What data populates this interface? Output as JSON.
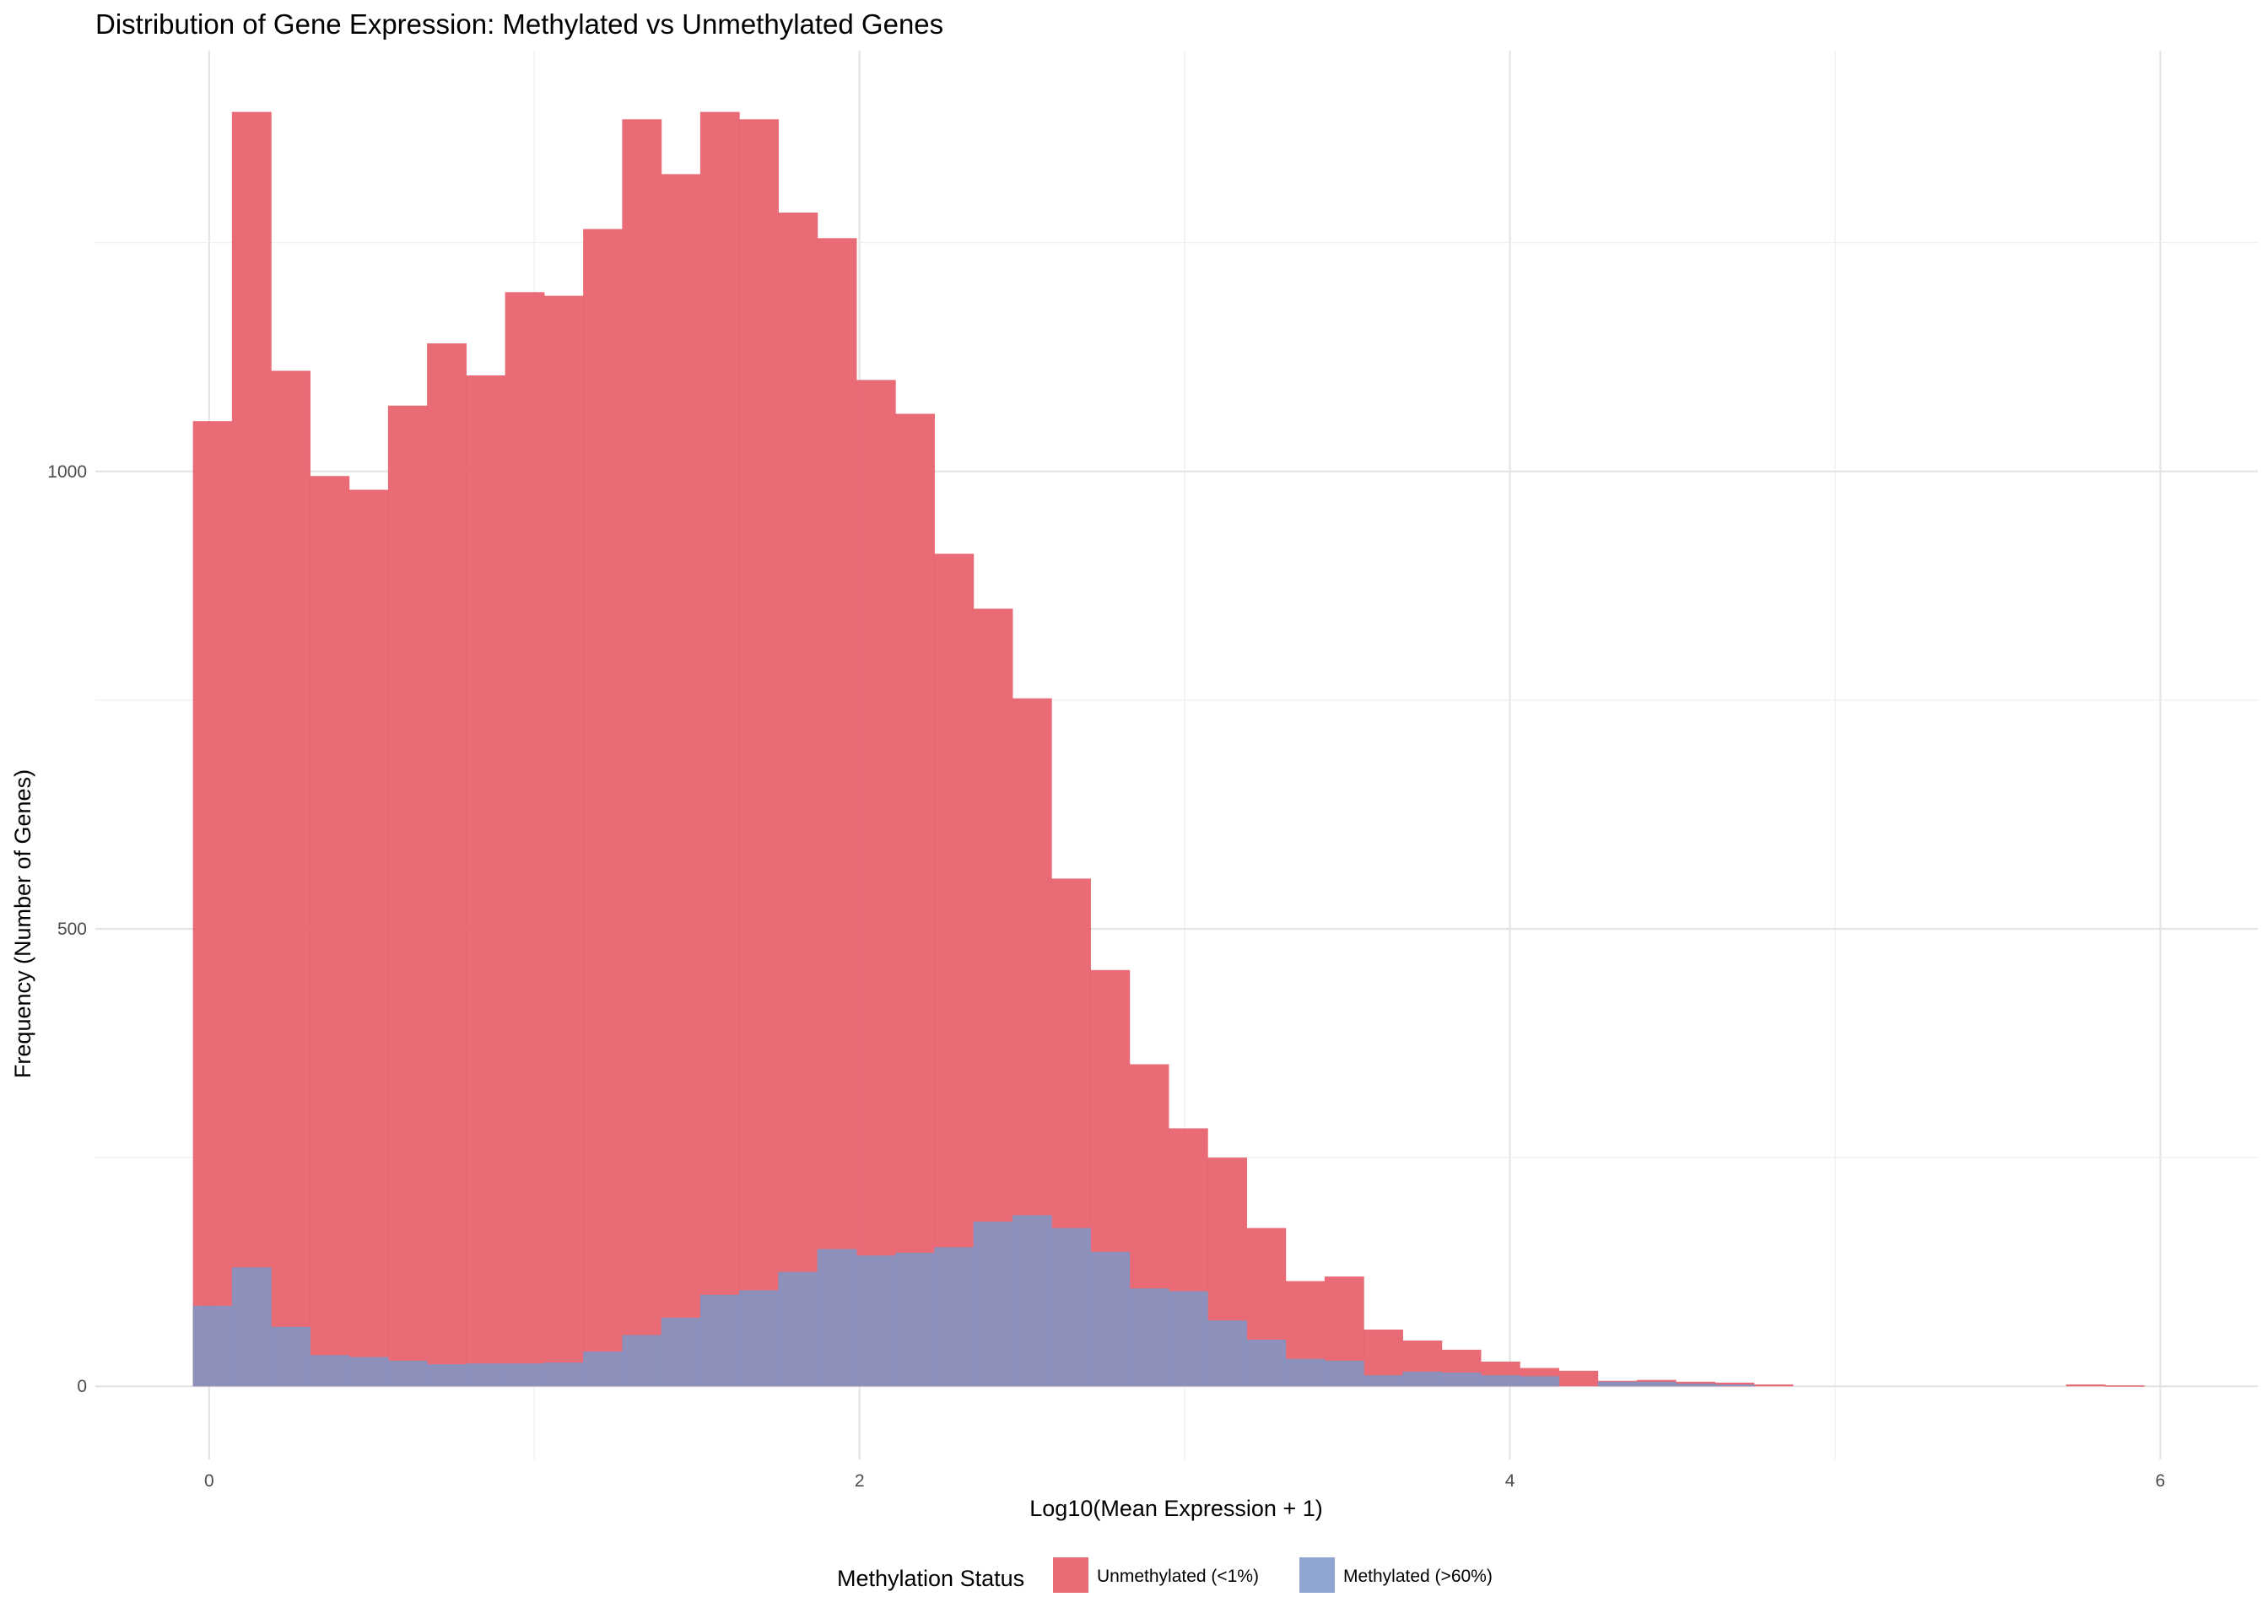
{
  "chart_data": {
    "type": "bar",
    "chart_subtype": "overlaid-histogram",
    "title": "Distribution of Gene Expression: Methylated vs Unmethylated Genes",
    "xlabel": "Log10(Mean Expression + 1)",
    "ylabel": "Frequency (Number of Genes)",
    "xlim": [
      -0.35,
      6.3
    ],
    "ylim": [
      -80,
      1460
    ],
    "x_ticks": [
      0,
      2,
      4,
      6
    ],
    "x_tick_labels": [
      "0",
      "2",
      "4",
      "6"
    ],
    "y_ticks": [
      0,
      500,
      1000
    ],
    "y_tick_labels": [
      "0",
      "500",
      "1000"
    ],
    "grid": true,
    "bin_width": 0.12,
    "bin_start": -0.05,
    "legend": {
      "title": "Methylation Status",
      "position": "bottom",
      "entries": [
        "Unmethylated (<1%)",
        "Methylated (>60%)"
      ]
    },
    "series": [
      {
        "name": "Unmethylated (<1%)",
        "color": "#E8636F",
        "values": [
          1055,
          1393,
          1110,
          995,
          980,
          1072,
          1140,
          1105,
          1196,
          1192,
          1265,
          1385,
          1325,
          1393,
          1385,
          1283,
          1255,
          1100,
          1063,
          910,
          850,
          752,
          555,
          455,
          352,
          282,
          250,
          173,
          115,
          120,
          62,
          50,
          40,
          27,
          20,
          17,
          6,
          7,
          5,
          4,
          2,
          0,
          0,
          0,
          0,
          0,
          0,
          0,
          2,
          1,
          0,
          0,
          0,
          0,
          0,
          0,
          0,
          1
        ]
      },
      {
        "name": "Methylated (>60%)",
        "color": "#7C97C8",
        "values": [
          88,
          130,
          65,
          34,
          32,
          28,
          24,
          25,
          25,
          26,
          38,
          56,
          75,
          100,
          105,
          125,
          150,
          143,
          146,
          152,
          180,
          187,
          173,
          147,
          107,
          104,
          72,
          51,
          30,
          28,
          12,
          16,
          15,
          12,
          11,
          0,
          5,
          5,
          3,
          2,
          0,
          0,
          0,
          0,
          0,
          0,
          0,
          0,
          0,
          0,
          0,
          0,
          0,
          0,
          0,
          0,
          0,
          0
        ]
      }
    ]
  }
}
